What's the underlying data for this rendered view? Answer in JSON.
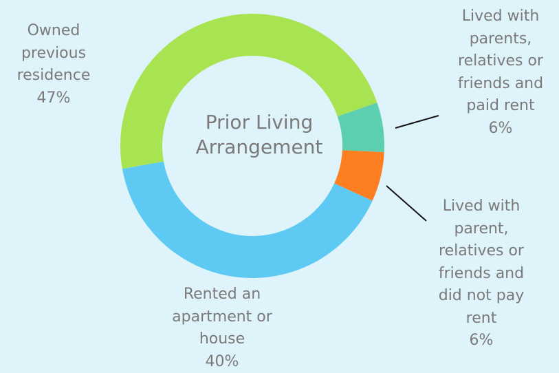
{
  "chart_data": {
    "type": "donut",
    "title": "Prior Living Arrangement",
    "categories": [
      "Owned previous residence",
      "Lived with parents, relatives or friends and paid rent",
      "Lived with parent, relatives or friends and did not pay rent",
      "Rented an apartment or house"
    ],
    "values": [
      47,
      6,
      6,
      40
    ],
    "value_labels": [
      "47%",
      "6%",
      "6%",
      "40%"
    ],
    "colors": [
      "#a8e451",
      "#5ccfb1",
      "#fd7f22",
      "#5ecaf3"
    ]
  }
}
